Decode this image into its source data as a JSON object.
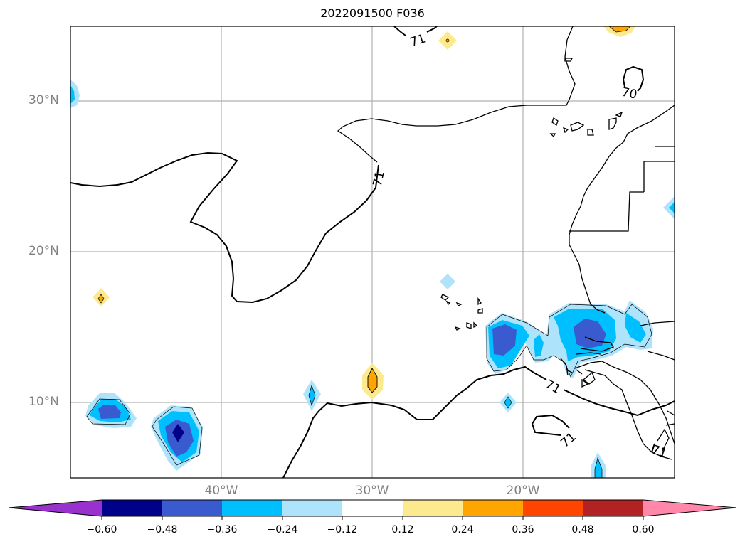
{
  "title": "2022091500 F036",
  "lat_labels": [
    "30°N",
    "20°N",
    "10°N"
  ],
  "lon_labels": [
    "40°W",
    "30°W",
    "20°W"
  ],
  "contour_labels": [
    "71",
    "71",
    "70",
    "71",
    "71",
    "71"
  ],
  "colorbar": {
    "ticks": [
      "−0.60",
      "−0.48",
      "−0.36",
      "−0.24",
      "−0.12",
      "0.12",
      "0.24",
      "0.36",
      "0.48",
      "0.60"
    ],
    "colors": [
      "#9932cc",
      "#00008b",
      "#3a5bd0",
      "#00bfff",
      "#ade3fb",
      "#ffffff",
      "#fde98e",
      "#ffa500",
      "#ff4500",
      "#b22222",
      "#ff88aa"
    ],
    "extend": "both"
  },
  "map_extent": {
    "lon": [
      -50,
      -10
    ],
    "lat": [
      5,
      35
    ]
  },
  "gridlines": true
}
